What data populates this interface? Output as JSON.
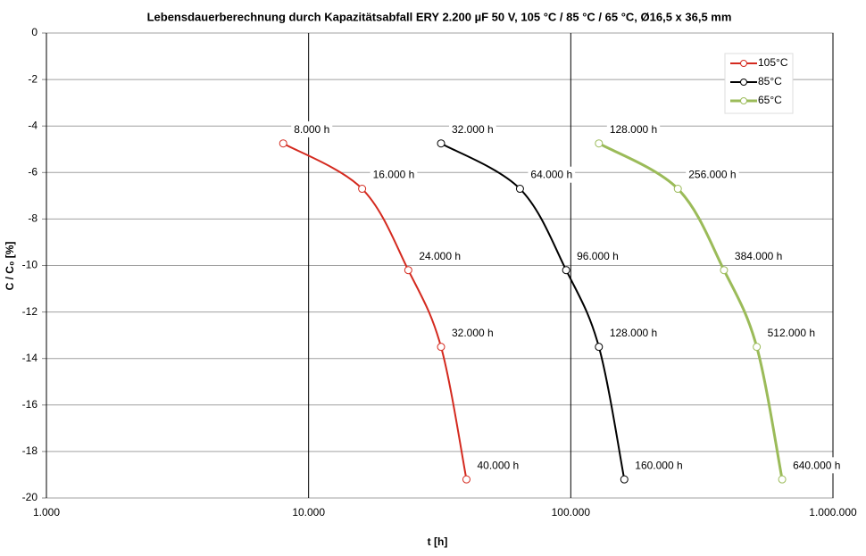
{
  "chart_data": {
    "type": "line",
    "title": "Lebensdauerberechnung durch Kapazitätsabfall ERY 2.200 µF 50 V, 105 °C / 85 °C / 65 °C, Ø16,5 x 36,5 mm",
    "x_label": "t [h]",
    "y_label": "C / C₀ [%]",
    "log_x": true,
    "grid": true,
    "legend": "upper right",
    "xlim": [
      1000,
      1000000
    ],
    "xticks": [
      {
        "value": 1000,
        "label": "1.000"
      },
      {
        "value": 10000,
        "label": "10.000"
      },
      {
        "value": 100000,
        "label": "100.000"
      },
      {
        "value": 1000000,
        "label": "1.000.000"
      }
    ],
    "ylim": [
      -20,
      0
    ],
    "yticks": [
      0,
      -2,
      -4,
      -6,
      -8,
      -10,
      -12,
      -14,
      -16,
      -18,
      -20
    ],
    "series": [
      {
        "name": "105°C",
        "color": "#d42a1f",
        "x": [
          8000,
          16000,
          24000,
          32000,
          40000
        ],
        "values": [
          -4.75,
          -6.7,
          -10.2,
          -13.5,
          -19.2
        ],
        "x_labels": [
          "8.000 h",
          "16.000 h",
          "24.000 h",
          "32.000 h",
          "40.000 h"
        ]
      },
      {
        "name": "85°C",
        "color": "#000000",
        "x": [
          32000,
          64000,
          96000,
          128000,
          160000
        ],
        "values": [
          -4.75,
          -6.7,
          -10.2,
          -13.5,
          -19.2
        ],
        "x_labels": [
          "32.000 h",
          "64.000 h",
          "96.000 h",
          "128.000 h",
          "160.000 h"
        ]
      },
      {
        "name": "65°C",
        "color": "#9bbb59",
        "x": [
          128000,
          256000,
          384000,
          512000,
          640000
        ],
        "values": [
          -4.75,
          -6.7,
          -10.2,
          -13.5,
          -19.2
        ],
        "x_labels": [
          "128.000 h",
          "256.000 h",
          "384.000 h",
          "512.000 h",
          "640.000 h"
        ]
      }
    ]
  }
}
